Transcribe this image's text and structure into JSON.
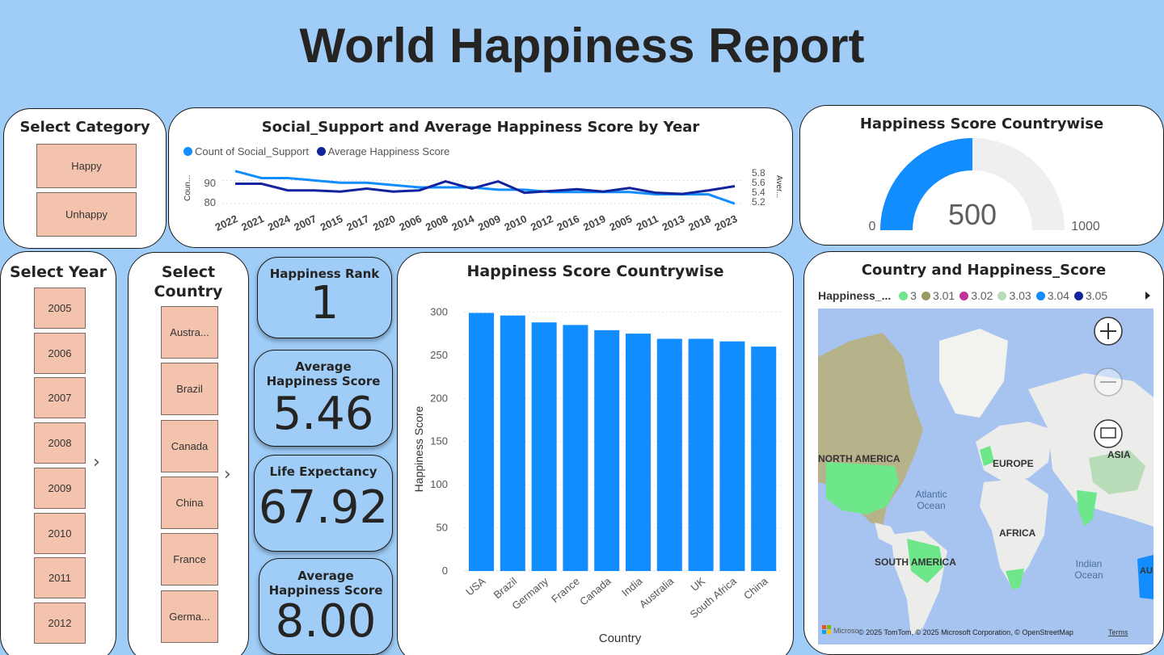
{
  "page": {
    "title": "World Happiness Report"
  },
  "category_slicer": {
    "title": "Select Category",
    "options": [
      "Happy",
      "Unhappy"
    ]
  },
  "line_chart": {
    "title": "Social_Support and Average Happiness Score by Year",
    "legend": [
      "Count of Social_Support",
      "Average Happiness Score"
    ],
    "left_axis_label": "Coun...",
    "right_axis_label": "Aver...",
    "left_ticks": [
      "90",
      "80"
    ],
    "right_ticks": [
      "5.8",
      "5.6",
      "5.4",
      "5.2"
    ]
  },
  "gauge": {
    "title": "Happiness Score Countrywise",
    "value_label": "500",
    "min_label": "0",
    "max_label": "1000"
  },
  "year_slicer": {
    "title": "Select Year",
    "options": [
      "2005",
      "2006",
      "2007",
      "2008",
      "2009",
      "2010",
      "2011",
      "2012"
    ],
    "more": "›"
  },
  "country_slicer": {
    "title_line1": "Select",
    "title_line2": "Country",
    "options": [
      "Austra...",
      "Brazil",
      "Canada",
      "China",
      "France",
      "Germa..."
    ],
    "more": "›"
  },
  "kpis": {
    "rank": {
      "label": "Happiness Rank",
      "value": "1"
    },
    "avg": {
      "label": "Average Happiness Score",
      "value": "5.46"
    },
    "life": {
      "label": "Life Expectancy",
      "value": "67.92"
    },
    "avg2": {
      "label_line1": "Average",
      "label_line2": "Happiness Score",
      "value": "8.00"
    }
  },
  "bar_chart": {
    "title": "Happiness Score Countrywise"
  },
  "map": {
    "title": "Country and Happiness_Score",
    "legend_title": "Happiness_...",
    "legend_items": [
      {
        "label": "3",
        "color": "#6ee68a"
      },
      {
        "label": "3.01",
        "color": "#9a9a62"
      },
      {
        "label": "3.02",
        "color": "#c0329a"
      },
      {
        "label": "3.03",
        "color": "#b8dcb8"
      },
      {
        "label": "3.04",
        "color": "#118dff"
      },
      {
        "label": "3.05",
        "color": "#12239e"
      }
    ],
    "regions": [
      "NORTH AMERICA",
      "EUROPE",
      "ASIA",
      "AFRICA",
      "SOUTH AMERICA"
    ],
    "oceans": [
      "Atlantic",
      "Ocean",
      "Indian",
      "Ocean"
    ],
    "attribution": "© 2025 TomTom, © 2025 Microsoft Corporation, © OpenStreetMap",
    "terms": "Terms",
    "logo_text": "Microso",
    "right_edge": "AU"
  },
  "chart_data": [
    {
      "type": "line",
      "title": "Social_Support and Average Happiness Score by Year",
      "categories": [
        "2022",
        "2021",
        "2024",
        "2007",
        "2015",
        "2017",
        "2020",
        "2006",
        "2008",
        "2014",
        "2009",
        "2010",
        "2012",
        "2016",
        "2019",
        "2005",
        "2011",
        "2013",
        "2018",
        "2023"
      ],
      "series": [
        {
          "name": "Count of Social_Support",
          "axis": "left",
          "color": "#118dff",
          "values": [
            94,
            91,
            91,
            90,
            89,
            89,
            88,
            87,
            87,
            87,
            86,
            86,
            85,
            85,
            85,
            85,
            84,
            84,
            84,
            80
          ]
        },
        {
          "name": "Average Happiness Score",
          "axis": "right",
          "color": "#12239e",
          "values": [
            5.56,
            5.56,
            5.45,
            5.45,
            5.43,
            5.48,
            5.43,
            5.45,
            5.6,
            5.48,
            5.6,
            5.41,
            5.44,
            5.47,
            5.43,
            5.49,
            5.41,
            5.39,
            5.45,
            5.52
          ]
        }
      ],
      "ylim_left": [
        78,
        96
      ],
      "ylim_right": [
        5.15,
        5.85
      ]
    },
    {
      "type": "bar",
      "title": "Happiness Score Countrywise",
      "xlabel": "Country",
      "ylabel": "Happiness Score",
      "categories": [
        "USA",
        "Brazil",
        "Germany",
        "France",
        "Canada",
        "India",
        "Australia",
        "UK",
        "South Africa",
        "China"
      ],
      "values": [
        299,
        296,
        288,
        285,
        279,
        275,
        269,
        269,
        266,
        260
      ],
      "yticks": [
        0,
        50,
        100,
        150,
        200,
        250,
        300
      ],
      "ylim": [
        0,
        320
      ],
      "color": "#118dff"
    },
    {
      "type": "gauge",
      "title": "Happiness Score Countrywise",
      "value": 500,
      "min": 0,
      "max": 1000
    }
  ]
}
